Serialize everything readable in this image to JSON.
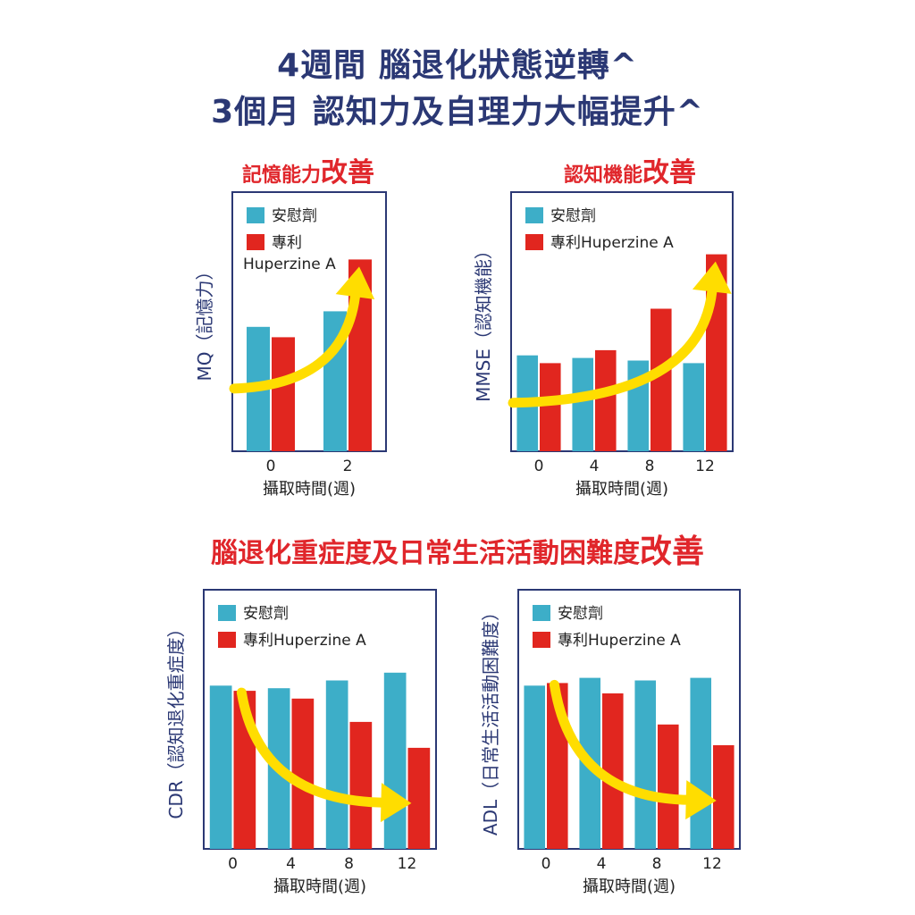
{
  "header": {
    "title_line1": "4週間 腦退化狀態逆轉^",
    "title_line2": "3個月 認知力及自理力大幅提升^"
  },
  "sections": {
    "memory": {
      "text": "記憶能力",
      "emphasis": "改善"
    },
    "cognition": {
      "text": "認知機能",
      "emphasis": "改善"
    },
    "severity": {
      "text": "腦退化重症度及日常生活活動困難度",
      "emphasis": "改善"
    }
  },
  "colors": {
    "placebo": "#3daec8",
    "huperzine": "#e1261f",
    "arrow": "#ffdd00",
    "frame": "#2b3874",
    "title": "#2b3874",
    "accent": "#e0262b"
  },
  "chart_data": [
    {
      "id": "memory",
      "type": "bar",
      "ylabel": "MQ（記憶力）",
      "xlabel": "攝取時間(週)",
      "categories": [
        "0",
        "2"
      ],
      "ylim": [
        0,
        100
      ],
      "series": [
        {
          "name": "安慰劑",
          "values": [
            48,
            54
          ]
        },
        {
          "name": "專利Huperzine A",
          "values": [
            44,
            74
          ]
        }
      ],
      "legend_wrap": true,
      "trend": "up"
    },
    {
      "id": "mmse",
      "type": "bar",
      "ylabel": "MMSE（認知機能）",
      "xlabel": "攝取時間(週)",
      "categories": [
        "0",
        "4",
        "8",
        "12"
      ],
      "ylim": [
        0,
        100
      ],
      "series": [
        {
          "name": "安慰劑",
          "values": [
            37,
            36,
            35,
            34
          ]
        },
        {
          "name": "專利Huperzine A",
          "values": [
            34,
            39,
            55,
            76
          ]
        }
      ],
      "legend_wrap": false,
      "trend": "up"
    },
    {
      "id": "cdr",
      "type": "bar",
      "ylabel": "CDR（認知退化重症度）",
      "xlabel": "攝取時間(週)",
      "categories": [
        "0",
        "4",
        "8",
        "12"
      ],
      "ylim": [
        0,
        100
      ],
      "series": [
        {
          "name": "安慰劑",
          "values": [
            63,
            62,
            65,
            68
          ]
        },
        {
          "name": "專利Huperzine A",
          "values": [
            61,
            58,
            49,
            39
          ]
        }
      ],
      "legend_wrap": false,
      "trend": "down"
    },
    {
      "id": "adl",
      "type": "bar",
      "ylabel": "ADL（日常生活活動困難度）",
      "xlabel": "攝取時間(週)",
      "categories": [
        "0",
        "4",
        "8",
        "12"
      ],
      "ylim": [
        0,
        100
      ],
      "series": [
        {
          "name": "安慰劑",
          "values": [
            63,
            66,
            65,
            66
          ]
        },
        {
          "name": "專利Huperzine A",
          "values": [
            64,
            60,
            48,
            40
          ]
        }
      ],
      "legend_wrap": false,
      "trend": "down"
    }
  ]
}
